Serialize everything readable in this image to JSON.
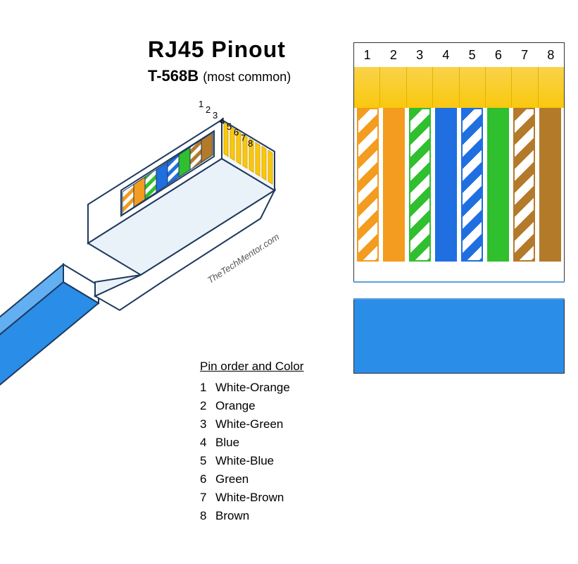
{
  "title": "RJ45  Pinout",
  "subtitle_main": "T-568B",
  "subtitle_note": "(most common)",
  "credit": "TheTechMentor.com",
  "legend_title_a": "Pin order",
  "legend_title_and": "and",
  "legend_title_b": "Color",
  "colors": {
    "orange": "#f39c1f",
    "green": "#2fbf2f",
    "blue": "#1f6fe0",
    "brown": "#b37a2a",
    "gold": "#f9c80e",
    "gold_dark": "#e0a800",
    "cable": "#2a8de8",
    "cable_light": "#62b0f2",
    "connector_stroke": "#1e3a5f",
    "text": "#000000",
    "bg": "#ffffff"
  },
  "pins": [
    {
      "n": 1,
      "label": "White-Orange",
      "type": "stripe",
      "color_key": "orange"
    },
    {
      "n": 2,
      "label": "Orange",
      "type": "solid",
      "color_key": "orange"
    },
    {
      "n": 3,
      "label": "White-Green",
      "type": "stripe",
      "color_key": "green"
    },
    {
      "n": 4,
      "label": "Blue",
      "type": "solid",
      "color_key": "blue"
    },
    {
      "n": 5,
      "label": "White-Blue",
      "type": "stripe",
      "color_key": "blue"
    },
    {
      "n": 6,
      "label": "Green",
      "type": "solid",
      "color_key": "green"
    },
    {
      "n": 7,
      "label": "White-Brown",
      "type": "stripe",
      "color_key": "brown"
    },
    {
      "n": 8,
      "label": "Brown",
      "type": "solid",
      "color_key": "brown"
    }
  ],
  "iso_pin_numbers": [
    "1",
    "2",
    "3",
    "4",
    "5",
    "6",
    "7",
    "8"
  ]
}
